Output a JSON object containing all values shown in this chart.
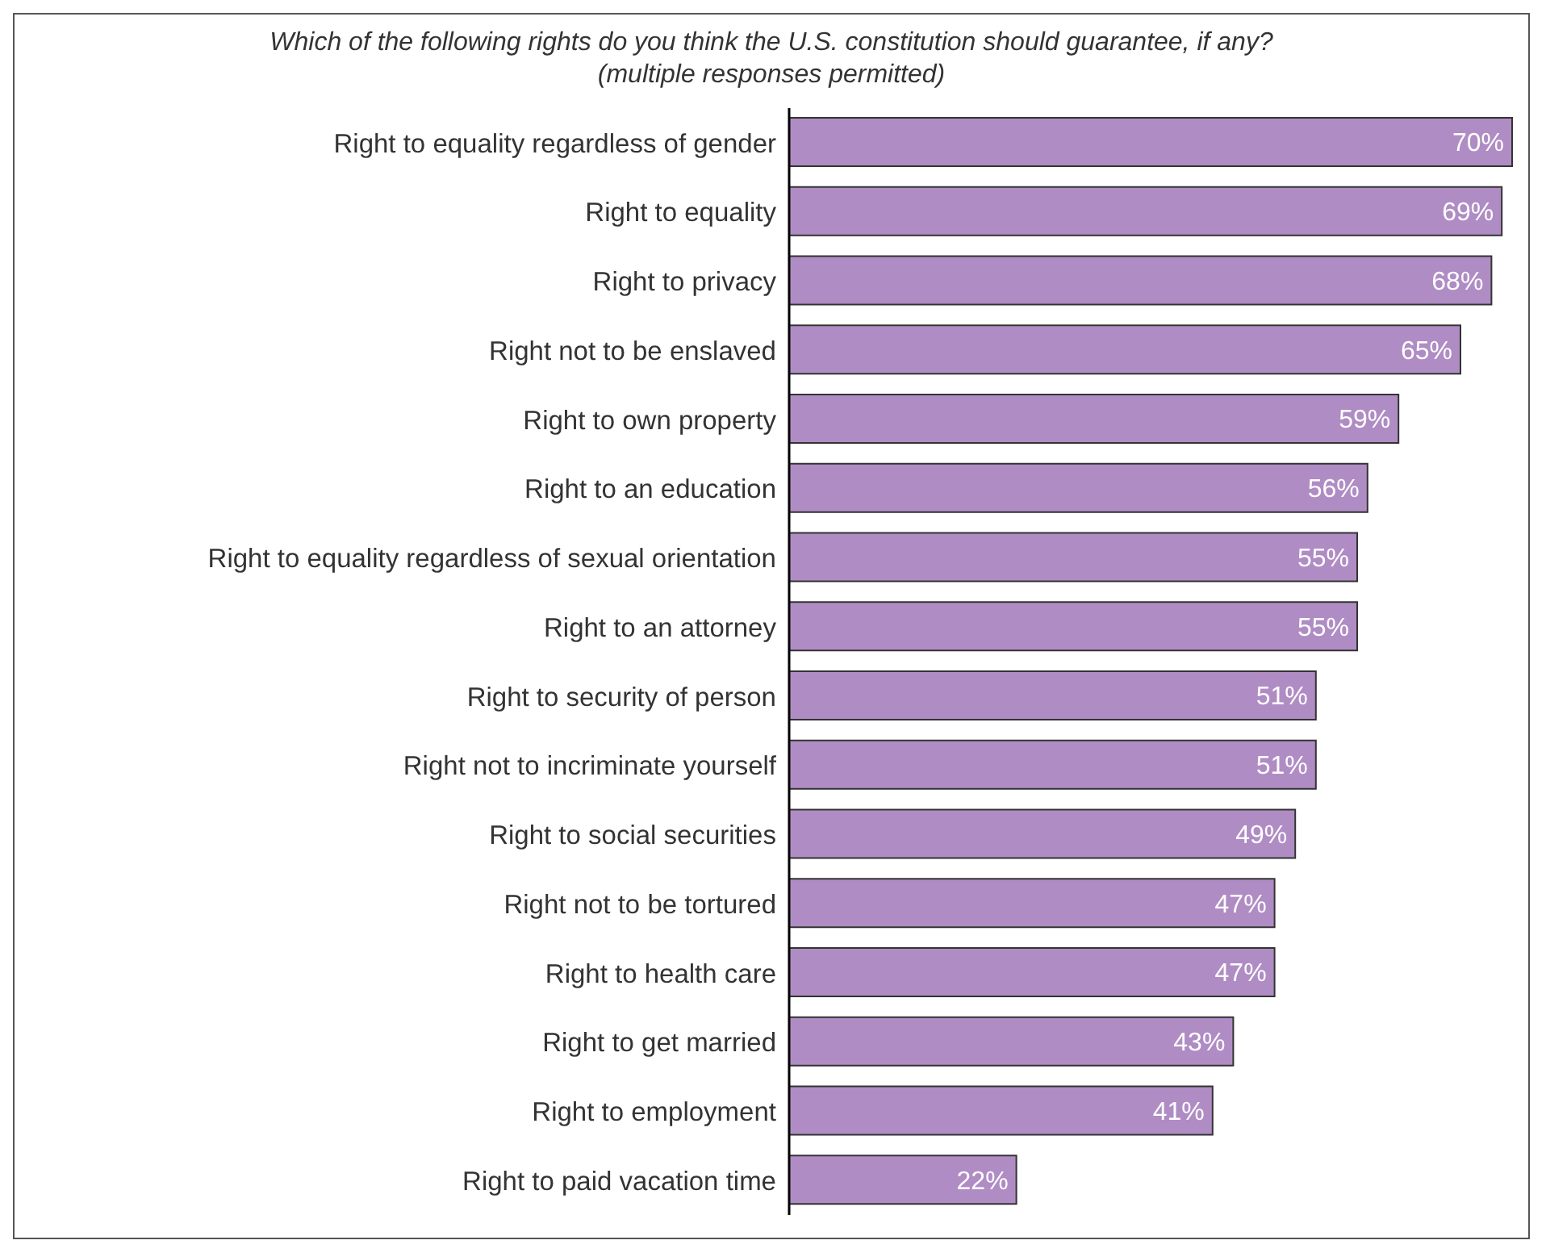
{
  "chart_data": {
    "type": "bar",
    "orientation": "horizontal",
    "title": "Which of the following rights do you think the U.S. constitution should guarantee, if any?",
    "subtitle": "(multiple responses permitted)",
    "categories": [
      "Right to equality regardless of gender",
      "Right to equality",
      "Right to privacy",
      "Right not to be enslaved",
      "Right to own property",
      "Right to an education",
      "Right to equality regardless of sexual orientation",
      "Right to an attorney",
      "Right to security of person",
      "Right not to incriminate yourself",
      "Right to social securities",
      "Right not to be tortured",
      "Right to health care",
      "Right to get married",
      "Right to employment",
      "Right to paid vacation time"
    ],
    "values": [
      70,
      69,
      68,
      65,
      59,
      56,
      55,
      55,
      51,
      51,
      49,
      47,
      47,
      43,
      41,
      22
    ],
    "value_labels": [
      "70%",
      "69%",
      "68%",
      "65%",
      "59%",
      "56%",
      "55%",
      "55%",
      "51%",
      "51%",
      "49%",
      "47%",
      "47%",
      "43%",
      "41%",
      "22%"
    ],
    "color": "#b08cc4",
    "tick_labels": "y",
    "grid": false
  }
}
